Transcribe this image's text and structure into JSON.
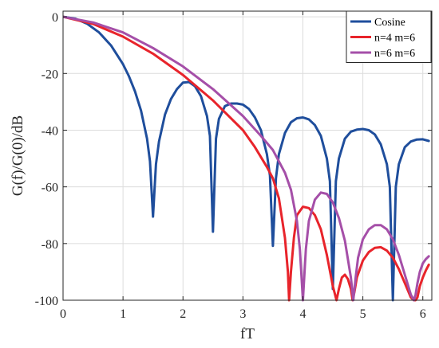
{
  "chart_data": {
    "type": "line",
    "title": "",
    "xlabel": "fT",
    "ylabel": "G(f)/G(0)/dB",
    "xlim": [
      0,
      6.15
    ],
    "ylim": [
      -100,
      2
    ],
    "xticks": [
      0,
      1,
      2,
      3,
      4,
      5,
      6
    ],
    "yticks": [
      0,
      -20,
      -40,
      -60,
      -80,
      -100
    ],
    "xtick_labels": [
      "0",
      "1",
      "2",
      "3",
      "4",
      "5",
      "6"
    ],
    "ytick_labels": [
      "0",
      "-20",
      "-40",
      "-60",
      "-80",
      "-100"
    ],
    "grid": true,
    "legend_position": "top-right",
    "series": [
      {
        "name": "Cosine",
        "color": "#1f4e9c",
        "x": [
          0,
          0.2,
          0.4,
          0.6,
          0.8,
          1.0,
          1.1,
          1.2,
          1.3,
          1.4,
          1.45,
          1.5,
          1.55,
          1.6,
          1.7,
          1.8,
          1.9,
          2.0,
          2.1,
          2.2,
          2.3,
          2.4,
          2.45,
          2.5,
          2.55,
          2.6,
          2.7,
          2.8,
          2.9,
          3.0,
          3.1,
          3.2,
          3.3,
          3.4,
          3.45,
          3.5,
          3.55,
          3.6,
          3.7,
          3.8,
          3.9,
          4.0,
          4.1,
          4.2,
          4.3,
          4.4,
          4.45,
          4.5,
          4.55,
          4.6,
          4.7,
          4.8,
          4.9,
          5.0,
          5.1,
          5.2,
          5.3,
          5.4,
          5.45,
          5.5,
          5.55,
          5.6,
          5.7,
          5.8,
          5.9,
          6.0,
          6.1
        ],
        "y": [
          0,
          -0.6,
          -2.4,
          -5.5,
          -10.1,
          -16.7,
          -21.0,
          -26.3,
          -33.1,
          -43.0,
          -51.0,
          -70.5,
          -52.0,
          -44.0,
          -34.5,
          -29.0,
          -25.5,
          -23.2,
          -23.0,
          -24.5,
          -28.0,
          -35.0,
          -42.0,
          -75.8,
          -43.0,
          -36.0,
          -31.5,
          -30.6,
          -30.6,
          -31.0,
          -32.5,
          -35.5,
          -40.0,
          -48.5,
          -56.0,
          -80.8,
          -57.0,
          -48.5,
          -41.0,
          -37.2,
          -35.8,
          -35.5,
          -36.2,
          -38.2,
          -42.0,
          -50.0,
          -58.0,
          -96.0,
          -58.0,
          -50.0,
          -43.0,
          -40.5,
          -39.8,
          -39.6,
          -40.0,
          -41.5,
          -45.0,
          -52.0,
          -60.0,
          -100.0,
          -60.0,
          -52.0,
          -46.0,
          -44.0,
          -43.3,
          -43.2,
          -43.8
        ]
      },
      {
        "name": "n=4 m=6",
        "color": "#e8242b",
        "x": [
          0,
          0.5,
          1.0,
          1.5,
          2.0,
          2.5,
          3.0,
          3.2,
          3.4,
          3.5,
          3.6,
          3.7,
          3.75,
          3.77,
          3.8,
          3.85,
          3.9,
          4.0,
          4.1,
          4.2,
          4.3,
          4.4,
          4.5,
          4.56,
          4.6,
          4.65,
          4.7,
          4.75,
          4.8,
          4.83,
          4.86,
          4.9,
          5.0,
          5.1,
          5.2,
          5.3,
          5.4,
          5.5,
          5.6,
          5.7,
          5.8,
          5.85,
          5.88,
          5.91,
          5.95,
          6.0,
          6.05,
          6.1
        ],
        "y": [
          0,
          -2.5,
          -7.0,
          -13.0,
          -20.5,
          -29.5,
          -40.0,
          -46.0,
          -53.0,
          -57.0,
          -64.0,
          -78.0,
          -90.0,
          -100.0,
          -90.0,
          -78.0,
          -70.0,
          -67.0,
          -67.5,
          -70.0,
          -75.0,
          -84.0,
          -95.0,
          -100.0,
          -96.0,
          -92.0,
          -91.0,
          -92.5,
          -96.0,
          -100.0,
          -97.0,
          -92.0,
          -86.0,
          -83.0,
          -81.5,
          -81.3,
          -82.5,
          -85.0,
          -89.0,
          -94.0,
          -99.0,
          -100.0,
          -100.0,
          -99.0,
          -95.0,
          -92.0,
          -89.5,
          -87.5
        ]
      },
      {
        "name": "n=6 m=6",
        "color": "#a54fa8",
        "x": [
          0,
          0.5,
          1.0,
          1.5,
          2.0,
          2.5,
          3.0,
          3.3,
          3.5,
          3.7,
          3.8,
          3.9,
          3.95,
          4.0,
          4.05,
          4.1,
          4.2,
          4.3,
          4.4,
          4.5,
          4.6,
          4.7,
          4.8,
          4.84,
          4.88,
          4.92,
          5.0,
          5.1,
          5.2,
          5.3,
          5.4,
          5.5,
          5.6,
          5.7,
          5.8,
          5.85,
          5.88,
          5.91,
          5.95,
          6.0,
          6.05,
          6.1
        ],
        "y": [
          0,
          -2.0,
          -5.5,
          -11.0,
          -17.5,
          -25.5,
          -35.0,
          -42.0,
          -47.0,
          -55.0,
          -61.0,
          -72.0,
          -82.0,
          -100.0,
          -82.0,
          -72.0,
          -64.5,
          -62.0,
          -62.5,
          -65.5,
          -71.0,
          -79.0,
          -92.0,
          -100.0,
          -92.0,
          -85.0,
          -78.5,
          -75.0,
          -73.5,
          -73.5,
          -75.0,
          -78.5,
          -84.0,
          -91.0,
          -98.0,
          -100.0,
          -98.0,
          -94.0,
          -90.0,
          -87.0,
          -85.5,
          -84.5
        ]
      }
    ]
  }
}
